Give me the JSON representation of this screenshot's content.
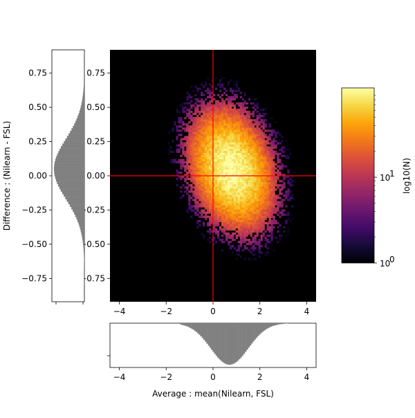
{
  "chart_data": [
    {
      "type": "heatmap",
      "name": "main-2d-histogram",
      "xlim": [
        -4.4,
        4.4
      ],
      "ylim": [
        -0.92,
        0.92
      ],
      "x_ticks": [
        "−4",
        "−2",
        "0",
        "2",
        "4"
      ],
      "x_tick_values": [
        -4,
        -2,
        0,
        2,
        4
      ],
      "y_ticks": [
        "0.75",
        "0.50",
        "0.25",
        "0.00",
        "−0.25",
        "−0.50",
        "−0.75"
      ],
      "y_tick_values": [
        0.75,
        0.5,
        0.25,
        0,
        -0.25,
        -0.5,
        -0.75
      ],
      "background": "#000000",
      "colormap": "inferno",
      "density_center": [
        0.8,
        0.05
      ],
      "density_spread": [
        0.9,
        0.22
      ],
      "correlation": -0.25,
      "approx_range_x": [
        -2.2,
        3.2
      ],
      "approx_range_y": [
        -0.78,
        0.65
      ],
      "crosshair": {
        "x": 0,
        "y": 0,
        "color": "#ff0000"
      }
    },
    {
      "type": "bar",
      "name": "bottom-marginal-histogram",
      "orientation": "vertical-inverted",
      "xlim": [
        -4.4,
        4.4
      ],
      "x_ticks": [
        "−4",
        "−2",
        "0",
        "2",
        "4"
      ],
      "x_tick_values": [
        -4,
        -2,
        0,
        2,
        4
      ],
      "xlabel": "Average :  mean(Nilearn, FSL)",
      "bar_color": "#808080",
      "distribution": {
        "mean": 0.7,
        "sd": 0.8,
        "support": [
          -1.4,
          3.2
        ]
      }
    },
    {
      "type": "bar",
      "name": "left-marginal-histogram",
      "orientation": "horizontal-inverted",
      "ylim": [
        -0.92,
        0.92
      ],
      "y_ticks": [
        "0.75",
        "0.50",
        "0.25",
        "0.00",
        "−0.25",
        "−0.50",
        "−0.75"
      ],
      "y_tick_values": [
        0.75,
        0.5,
        0.25,
        0,
        -0.25,
        -0.5,
        -0.75
      ],
      "ylabel": "Difference : (Nilearn - FSL)",
      "bar_color": "#808080",
      "distribution": {
        "mean": 0.05,
        "sd": 0.22,
        "support": [
          -0.8,
          0.68
        ]
      }
    },
    {
      "type": "colorbar",
      "name": "colorbar",
      "scale": "log",
      "range": [
        1,
        110
      ],
      "ticks": [
        "10",
        "10"
      ],
      "tick_exponents": [
        "0",
        "1"
      ],
      "tick_values": [
        1,
        10
      ],
      "label": "log10(N)",
      "colormap": "inferno"
    }
  ]
}
